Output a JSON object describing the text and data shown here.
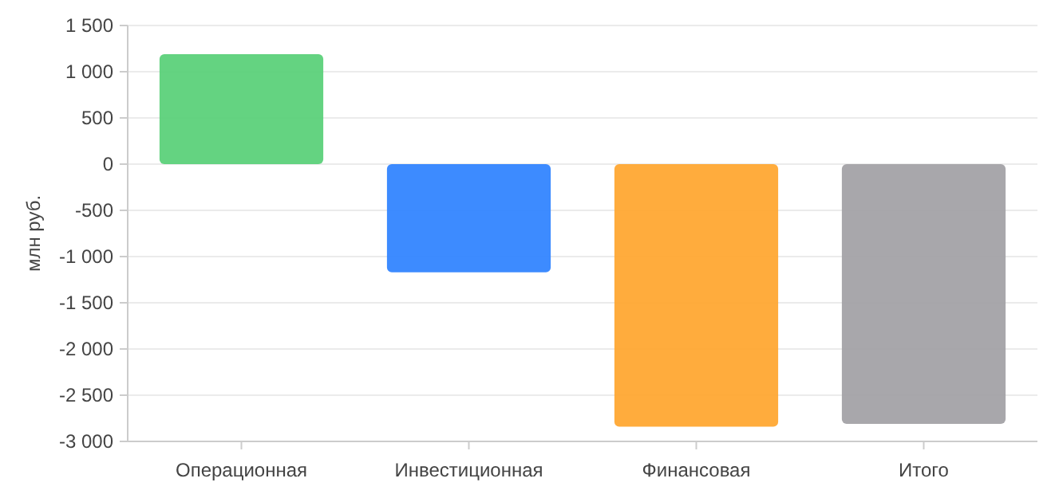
{
  "chart_data": {
    "type": "bar",
    "ylabel": "млн руб.",
    "categories": [
      "Операционная",
      "Инвестиционная",
      "Финансовая",
      "Итого"
    ],
    "values": [
      1190,
      -1170,
      -2840,
      -2810
    ],
    "colors": [
      "#5cd17a",
      "#3385ff",
      "#ffa833",
      "#a3a2a7"
    ],
    "ylim": [
      -3000,
      1500
    ],
    "yticks": [
      {
        "value": -3000,
        "label": "-3 000"
      },
      {
        "value": -2500,
        "label": "-2 500"
      },
      {
        "value": -2000,
        "label": "-2 000"
      },
      {
        "value": -1500,
        "label": "-1 500"
      },
      {
        "value": -1000,
        "label": "-1 000"
      },
      {
        "value": -500,
        "label": "-500"
      },
      0,
      500,
      {
        "value": 1000,
        "label": "1 000"
      },
      {
        "value": 1500,
        "label": "1 500"
      }
    ],
    "grid": "y"
  }
}
